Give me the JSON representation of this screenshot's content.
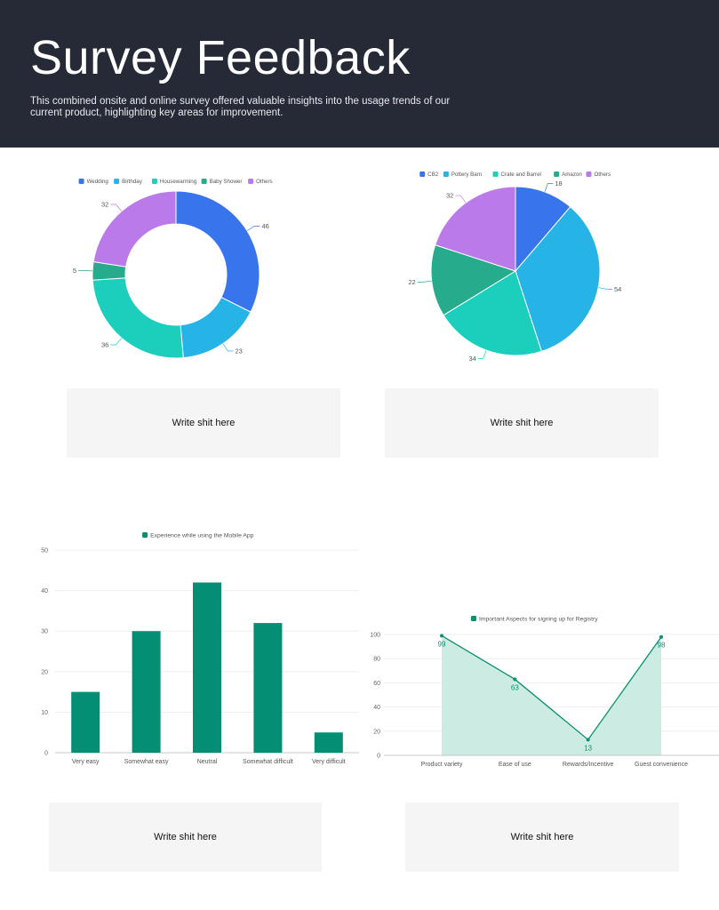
{
  "header": {
    "title": "Survey Feedback",
    "description": "This combined onsite and online survey offered valuable insights into the usage trends of our current product, highlighting key areas for improvement."
  },
  "notes": {
    "note1": "Write shit here",
    "note2": "Write shit here",
    "note3": "Write shit here",
    "note4": "Write shit here"
  },
  "chart_data": [
    {
      "type": "pie",
      "style": "donut",
      "legend_position": "top",
      "slices": [
        {
          "label": "Wedding",
          "value": 46,
          "color": "#3874ec"
        },
        {
          "label": "Birthday",
          "value": 23,
          "color": "#26b3e6"
        },
        {
          "label": "Housewarming",
          "value": 36,
          "color": "#1ccfbd"
        },
        {
          "label": "Baby Shower",
          "value": 5,
          "color": "#26ab8d"
        },
        {
          "label": "Others",
          "value": 32,
          "color": "#bb7ae9"
        }
      ]
    },
    {
      "type": "pie",
      "legend_position": "top",
      "slices": [
        {
          "label": "CB2",
          "value": 18,
          "color": "#3874ec"
        },
        {
          "label": "Pottery Barn",
          "value": 54,
          "color": "#26b3e6"
        },
        {
          "label": "Crate and Barrel",
          "value": 34,
          "color": "#1ccfbd"
        },
        {
          "label": "Amazon",
          "value": 22,
          "color": "#26ab8d"
        },
        {
          "label": "Others",
          "value": 32,
          "color": "#bb7ae9"
        }
      ]
    },
    {
      "type": "bar",
      "legend_position": "top",
      "categories": [
        "Very easy",
        "Somewhat easy",
        "Neutral",
        "Somewhat difficult",
        "Very difficult"
      ],
      "series": [
        {
          "name": "Experience while using the Mobile App",
          "values": [
            15,
            30,
            42,
            32,
            5
          ],
          "color": "#048e73"
        }
      ],
      "ylim": [
        0,
        50
      ],
      "yticks": [
        "0",
        "10",
        "20",
        "30",
        "40",
        "50"
      ],
      "grid": true
    },
    {
      "type": "area",
      "legend_position": "top",
      "categories": [
        "Product variety",
        "Ease of use",
        "Rewards/Incentive",
        "Guest convenience"
      ],
      "series": [
        {
          "name": "Important Aspects for signing up for Registry",
          "values": [
            99,
            63,
            13,
            98
          ],
          "color": "#0a8f70",
          "fill": "#cbebe3"
        }
      ],
      "ylim": [
        0,
        100
      ],
      "yticks": [
        "0",
        "20",
        "40",
        "60",
        "80",
        "100"
      ],
      "data_labels": [
        "99",
        "63",
        "13",
        "98"
      ],
      "grid": true
    }
  ]
}
